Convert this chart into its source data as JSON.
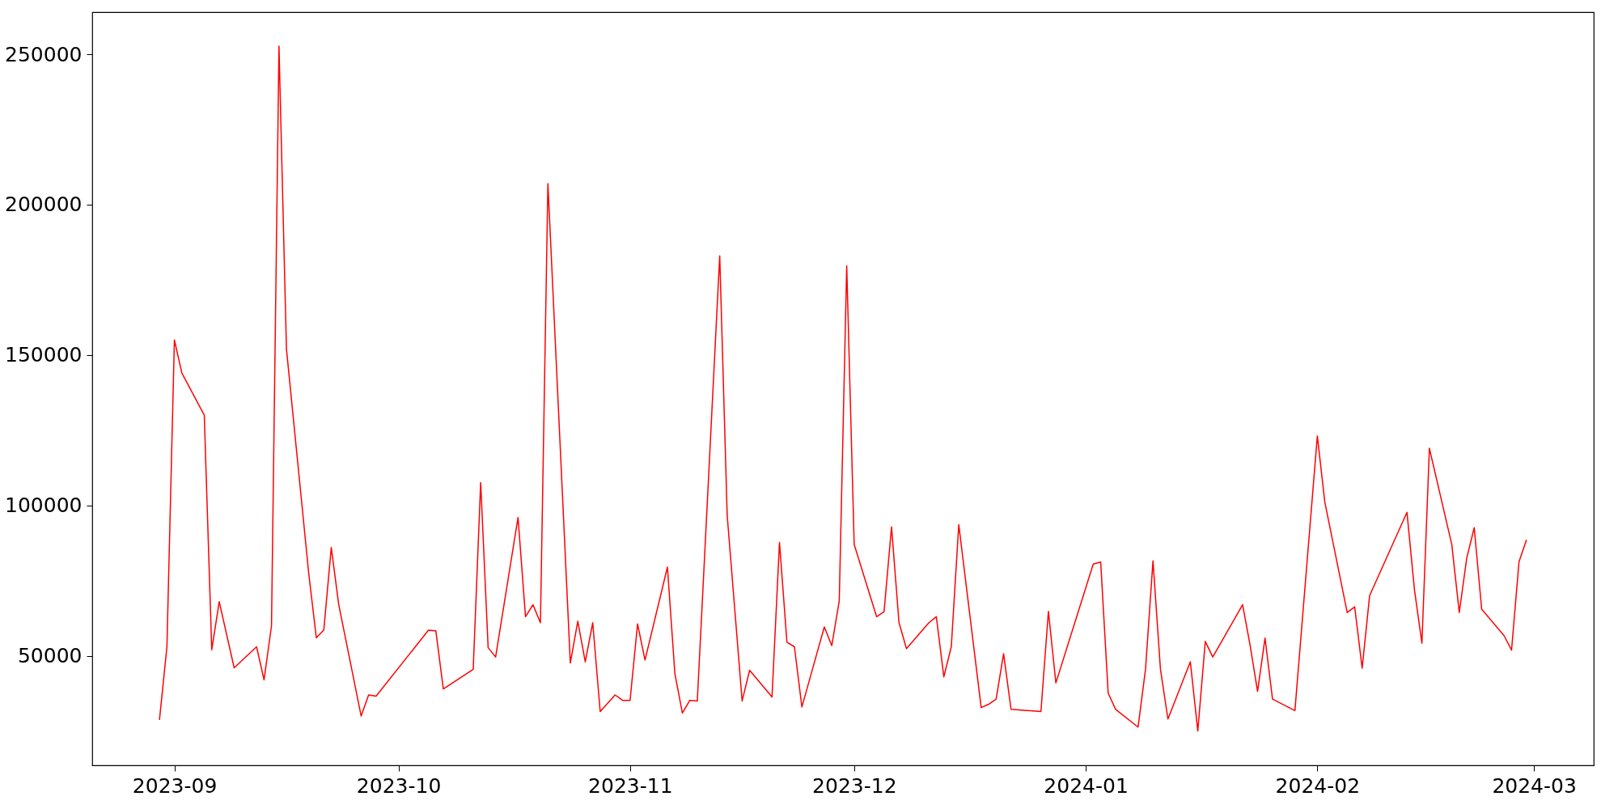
{
  "chart_data": {
    "type": "line",
    "color": "#ff0000",
    "x": [
      "2023-08-30",
      "2023-08-31",
      "2023-09-01",
      "2023-09-02",
      "2023-09-05",
      "2023-09-06",
      "2023-09-07",
      "2023-09-09",
      "2023-09-12",
      "2023-09-13",
      "2023-09-14",
      "2023-09-15",
      "2023-09-16",
      "2023-09-19",
      "2023-09-20",
      "2023-09-21",
      "2023-09-22",
      "2023-09-23",
      "2023-09-26",
      "2023-09-27",
      "2023-09-28",
      "2023-10-05",
      "2023-10-06",
      "2023-10-07",
      "2023-10-11",
      "2023-10-12",
      "2023-10-13",
      "2023-10-14",
      "2023-10-17",
      "2023-10-18",
      "2023-10-19",
      "2023-10-20",
      "2023-10-21",
      "2023-10-24",
      "2023-10-25",
      "2023-10-26",
      "2023-10-27",
      "2023-10-28",
      "2023-10-30",
      "2023-10-31",
      "2023-11-01",
      "2023-11-02",
      "2023-11-03",
      "2023-11-06",
      "2023-11-07",
      "2023-11-08",
      "2023-11-09",
      "2023-11-10",
      "2023-11-13",
      "2023-11-14",
      "2023-11-16",
      "2023-11-17",
      "2023-11-20",
      "2023-11-21",
      "2023-11-22",
      "2023-11-23",
      "2023-11-24",
      "2023-11-27",
      "2023-11-28",
      "2023-11-29",
      "2023-11-30",
      "2023-12-01",
      "2023-12-04",
      "2023-12-05",
      "2023-12-06",
      "2023-12-07",
      "2023-12-08",
      "2023-12-11",
      "2023-12-12",
      "2023-12-13",
      "2023-12-14",
      "2023-12-15",
      "2023-12-18",
      "2023-12-19",
      "2023-12-20",
      "2023-12-21",
      "2023-12-22",
      "2023-12-26",
      "2023-12-27",
      "2023-12-28",
      "2024-01-02",
      "2024-01-03",
      "2024-01-04",
      "2024-01-05",
      "2024-01-08",
      "2024-01-09",
      "2024-01-10",
      "2024-01-11",
      "2024-01-12",
      "2024-01-15",
      "2024-01-16",
      "2024-01-17",
      "2024-01-18",
      "2024-01-22",
      "2024-01-23",
      "2024-01-24",
      "2024-01-25",
      "2024-01-26",
      "2024-01-29",
      "2024-02-01",
      "2024-02-02",
      "2024-02-05",
      "2024-02-06",
      "2024-02-07",
      "2024-02-08",
      "2024-02-13",
      "2024-02-14",
      "2024-02-15",
      "2024-02-16",
      "2024-02-19",
      "2024-02-20",
      "2024-02-21",
      "2024-02-22",
      "2024-02-23",
      "2024-02-26",
      "2024-02-27",
      "2024-02-28",
      "2024-02-29"
    ],
    "values": [
      28700,
      53000,
      155000,
      144000,
      130000,
      52000,
      68000,
      46000,
      53000,
      42000,
      60000,
      252700,
      152000,
      77000,
      56000,
      58600,
      86000,
      67000,
      30000,
      37000,
      36600,
      58500,
      58300,
      39000,
      45500,
      107600,
      52700,
      49600,
      96000,
      63000,
      67000,
      61000,
      207000,
      47600,
      61500,
      48000,
      61000,
      31500,
      37000,
      35200,
      35200,
      60600,
      48600,
      79500,
      44000,
      31000,
      35200,
      35000,
      183000,
      96700,
      35000,
      45200,
      36300,
      87700,
      54500,
      53000,
      33000,
      59600,
      53400,
      68200,
      179700,
      87000,
      63000,
      64700,
      92900,
      61000,
      52400,
      61000,
      63000,
      43000,
      53000,
      93600,
      32800,
      33900,
      35600,
      50700,
      32200,
      31500,
      64800,
      41000,
      80500,
      81200,
      37600,
      32200,
      26300,
      45500,
      81600,
      45500,
      29000,
      48000,
      25000,
      54800,
      49600,
      67000,
      53500,
      38200,
      55900,
      35600,
      31800,
      123100,
      101100,
      64400,
      66300,
      45900,
      70000,
      97700,
      72000,
      54200,
      119000,
      87000,
      64400,
      82500,
      92600,
      65500,
      56700,
      51900,
      81300,
      88600
    ],
    "xlim": [
      "2023-08-21",
      "2024-03-09"
    ],
    "xticks": [
      "2023-09",
      "2023-10",
      "2023-11",
      "2023-12",
      "2024-01",
      "2024-02",
      "2024-03"
    ],
    "ylim": [
      13600,
      264000
    ],
    "yticks": [
      50000,
      100000,
      150000,
      200000,
      250000
    ]
  }
}
